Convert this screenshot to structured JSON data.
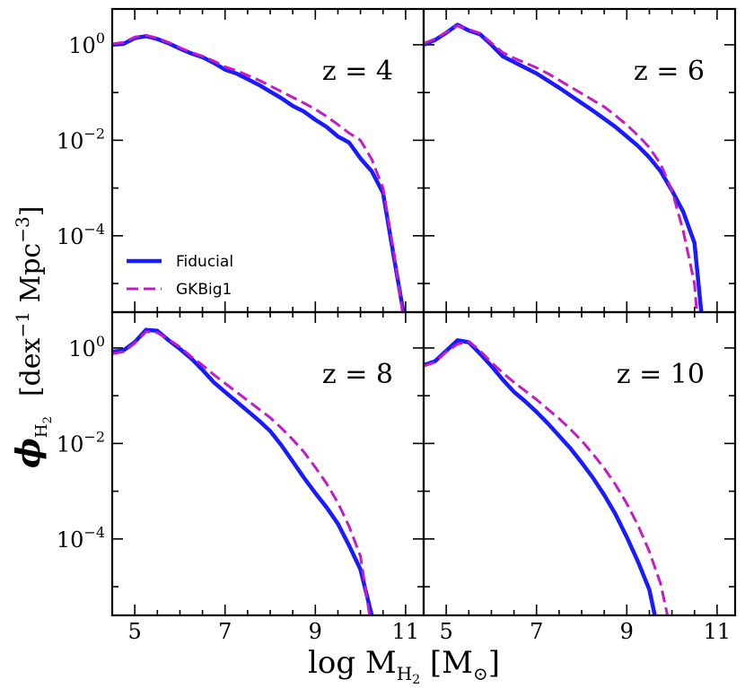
{
  "chart_data": {
    "type": "line",
    "layout": "2x2 grid, shared axes",
    "xlabel": "log M",
    "xlabel_sub": "H",
    "xlabel_sub2": "2",
    "xlabel_unit": " [M",
    "xlabel_unit_sym": "⊙",
    "xlabel_close": "]",
    "ylabel_phi": "ϕ",
    "ylabel_sub": "H",
    "ylabel_sub2": "2",
    "ylabel_unit": "[dex",
    "ylabel_exp1": "−1",
    "ylabel_unit2": " Mpc",
    "ylabel_exp2": "−3",
    "ylabel_close": "]",
    "xlim": [
      4.5,
      11.4
    ],
    "ylim_log10": [
      -5.6,
      0.75
    ],
    "yscale": "log",
    "grid": false,
    "x_ticks": [
      "5",
      "7",
      "9",
      "11"
    ],
    "y_ticks": [
      {
        "base": "10",
        "exp": "0",
        "log10": 0
      },
      {
        "base": "10",
        "exp": "−2",
        "log10": -2
      },
      {
        "base": "10",
        "exp": "−4",
        "log10": -4
      }
    ],
    "legend": {
      "placement": "lower-left of top-left panel",
      "entries": [
        {
          "label": "Fiducial",
          "color": "#1a1aff",
          "style": "solid"
        },
        {
          "label": "GKBig1",
          "color": "#c41cc4",
          "style": "dashed"
        }
      ]
    },
    "panels": [
      {
        "label": "z = 4",
        "series": [
          {
            "name": "Fiducial",
            "color": "#1a1aff",
            "x": [
              4.5,
              4.75,
              5.0,
              5.25,
              5.5,
              5.75,
              6.0,
              6.25,
              6.5,
              6.75,
              7.0,
              7.25,
              7.5,
              7.75,
              8.0,
              8.25,
              8.5,
              8.75,
              9.0,
              9.25,
              9.5,
              9.75,
              10.0,
              10.25,
              10.5,
              10.75,
              10.95
            ],
            "log10y": [
              0.0,
              0.02,
              0.14,
              0.18,
              0.12,
              0.03,
              -0.08,
              -0.18,
              -0.26,
              -0.38,
              -0.52,
              -0.6,
              -0.72,
              -0.84,
              -0.98,
              -1.12,
              -1.28,
              -1.4,
              -1.57,
              -1.72,
              -1.92,
              -2.05,
              -2.38,
              -2.65,
              -3.1,
              -4.5,
              -5.6
            ]
          },
          {
            "name": "GKBig1",
            "color": "#c41cc4",
            "x": [
              4.5,
              4.75,
              5.0,
              5.25,
              5.5,
              5.75,
              6.0,
              6.25,
              6.5,
              6.75,
              7.0,
              7.25,
              7.5,
              7.75,
              8.0,
              8.25,
              8.5,
              8.75,
              9.0,
              9.25,
              9.5,
              9.75,
              10.0,
              10.25,
              10.5,
              10.75,
              10.93
            ],
            "log10y": [
              0.02,
              0.05,
              0.16,
              0.2,
              0.14,
              0.05,
              -0.06,
              -0.16,
              -0.24,
              -0.34,
              -0.46,
              -0.54,
              -0.64,
              -0.74,
              -0.86,
              -0.98,
              -1.1,
              -1.22,
              -1.35,
              -1.5,
              -1.67,
              -1.85,
              -2.0,
              -2.4,
              -3.0,
              -4.4,
              -5.6
            ]
          }
        ]
      },
      {
        "label": "z = 6",
        "series": [
          {
            "name": "Fiducial",
            "color": "#1a1aff",
            "x": [
              4.5,
              4.75,
              5.0,
              5.25,
              5.5,
              5.75,
              6.0,
              6.25,
              6.5,
              6.75,
              7.0,
              7.25,
              7.5,
              7.75,
              8.0,
              8.25,
              8.5,
              8.75,
              9.0,
              9.25,
              9.5,
              9.75,
              10.0,
              10.25,
              10.5,
              10.65
            ],
            "log10y": [
              0.0,
              0.1,
              0.25,
              0.42,
              0.3,
              0.22,
              0.0,
              -0.24,
              -0.36,
              -0.48,
              -0.6,
              -0.75,
              -0.9,
              -1.06,
              -1.22,
              -1.38,
              -1.55,
              -1.72,
              -1.92,
              -2.12,
              -2.36,
              -2.65,
              -3.05,
              -3.5,
              -4.15,
              -5.6
            ]
          },
          {
            "name": "GKBig1",
            "color": "#c41cc4",
            "x": [
              4.5,
              4.75,
              5.0,
              5.25,
              5.5,
              5.75,
              6.0,
              6.25,
              6.5,
              6.75,
              7.0,
              7.25,
              7.5,
              7.75,
              8.0,
              8.25,
              8.5,
              8.75,
              9.0,
              9.25,
              9.5,
              9.75,
              10.0,
              10.25,
              10.5,
              10.55
            ],
            "log10y": [
              0.03,
              0.12,
              0.26,
              0.4,
              0.32,
              0.24,
              0.04,
              -0.16,
              -0.28,
              -0.38,
              -0.48,
              -0.6,
              -0.74,
              -0.88,
              -1.02,
              -1.16,
              -1.3,
              -1.48,
              -1.68,
              -1.9,
              -2.15,
              -2.5,
              -3.05,
              -3.9,
              -5.0,
              -5.6
            ]
          }
        ]
      },
      {
        "label": "z = 8",
        "series": [
          {
            "name": "Fiducial",
            "color": "#1a1aff",
            "x": [
              4.5,
              4.75,
              5.0,
              5.25,
              5.5,
              5.75,
              6.0,
              6.25,
              6.5,
              6.75,
              7.0,
              7.25,
              7.5,
              7.75,
              8.0,
              8.25,
              8.5,
              8.75,
              9.0,
              9.25,
              9.5,
              9.75,
              10.0,
              10.25
            ],
            "log10y": [
              -0.08,
              -0.05,
              0.12,
              0.38,
              0.36,
              0.16,
              -0.02,
              -0.22,
              -0.46,
              -0.72,
              -0.92,
              -1.12,
              -1.32,
              -1.52,
              -1.74,
              -2.04,
              -2.38,
              -2.72,
              -3.04,
              -3.34,
              -3.68,
              -4.14,
              -4.64,
              -5.6
            ]
          },
          {
            "name": "GKBig1",
            "color": "#c41cc4",
            "x": [
              4.5,
              4.75,
              5.0,
              5.25,
              5.5,
              5.75,
              6.0,
              6.25,
              6.5,
              6.75,
              7.0,
              7.25,
              7.5,
              7.75,
              8.0,
              8.25,
              8.5,
              8.75,
              9.0,
              9.25,
              9.5,
              9.75,
              10.0,
              10.2
            ],
            "log10y": [
              -0.12,
              -0.08,
              0.1,
              0.34,
              0.32,
              0.18,
              0.02,
              -0.18,
              -0.36,
              -0.56,
              -0.74,
              -0.92,
              -1.1,
              -1.28,
              -1.46,
              -1.68,
              -1.92,
              -2.18,
              -2.5,
              -2.84,
              -3.24,
              -3.74,
              -4.36,
              -5.6
            ]
          }
        ]
      },
      {
        "label": "z = 10",
        "series": [
          {
            "name": "Fiducial",
            "color": "#1a1aff",
            "x": [
              4.5,
              4.75,
              5.0,
              5.25,
              5.5,
              5.75,
              6.0,
              6.25,
              6.5,
              6.75,
              7.0,
              7.25,
              7.5,
              7.75,
              8.0,
              8.25,
              8.5,
              8.75,
              9.0,
              9.25,
              9.5,
              9.62
            ],
            "log10y": [
              -0.36,
              -0.28,
              -0.06,
              0.16,
              0.12,
              -0.12,
              -0.38,
              -0.66,
              -0.92,
              -1.12,
              -1.34,
              -1.58,
              -1.84,
              -2.1,
              -2.4,
              -2.72,
              -3.08,
              -3.48,
              -3.96,
              -4.48,
              -5.06,
              -5.6
            ]
          },
          {
            "name": "GKBig1",
            "color": "#c41cc4",
            "x": [
              4.5,
              4.75,
              5.0,
              5.25,
              5.5,
              5.75,
              6.0,
              6.25,
              6.5,
              6.75,
              7.0,
              7.25,
              7.5,
              7.75,
              8.0,
              8.25,
              8.5,
              8.75,
              9.0,
              9.25,
              9.5,
              9.75,
              9.9
            ],
            "log10y": [
              -0.38,
              -0.3,
              -0.08,
              0.08,
              0.14,
              -0.06,
              -0.3,
              -0.52,
              -0.72,
              -0.9,
              -1.08,
              -1.28,
              -1.48,
              -1.7,
              -1.94,
              -2.22,
              -2.52,
              -2.86,
              -3.26,
              -3.72,
              -4.26,
              -4.94,
              -5.6
            ]
          }
        ]
      }
    ]
  }
}
